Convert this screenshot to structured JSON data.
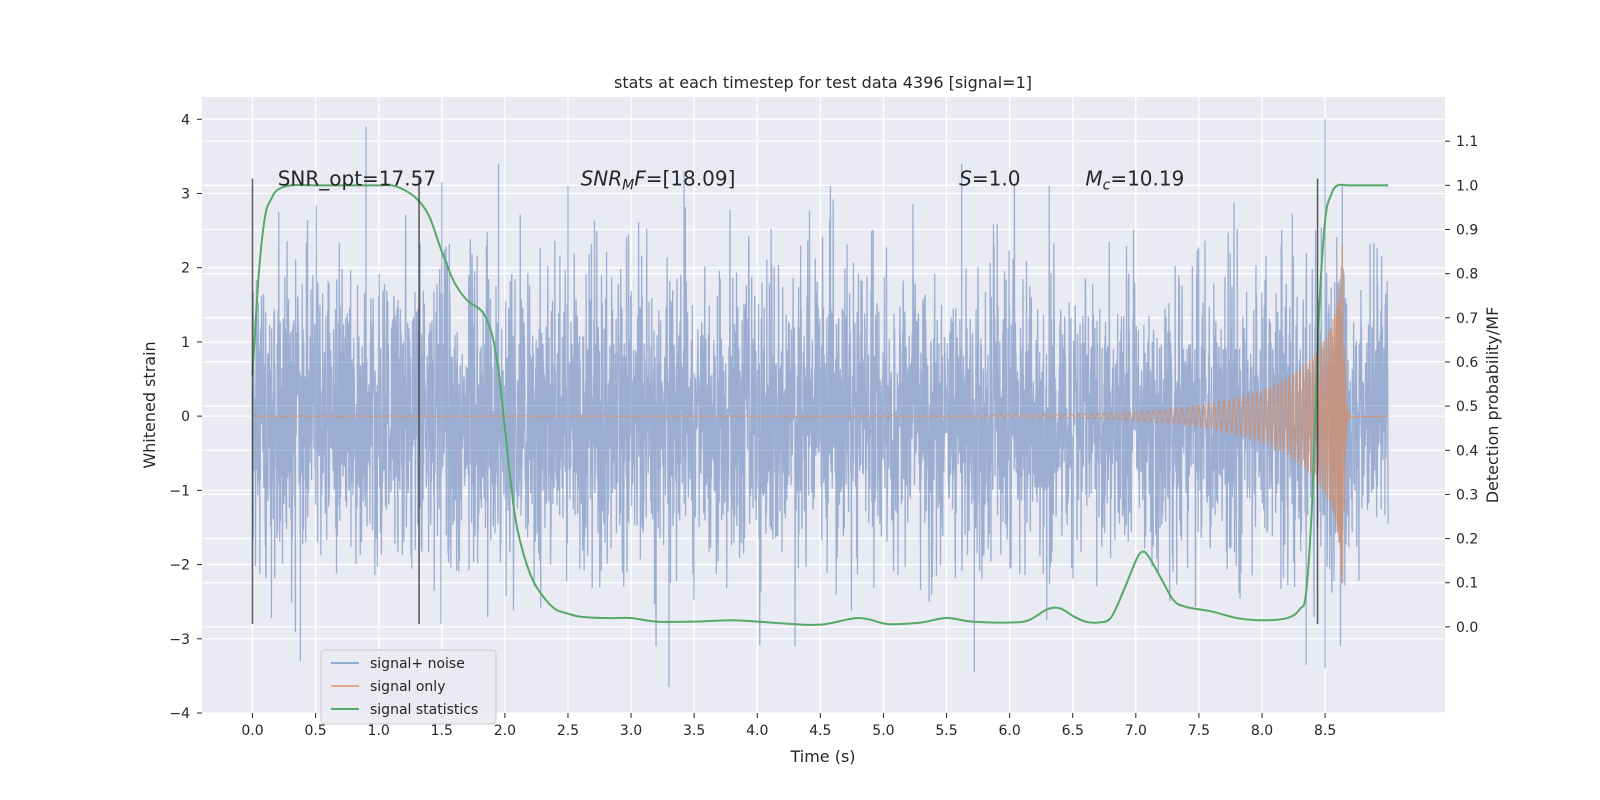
{
  "chart_data": {
    "type": "line",
    "title": "stats at each timestep for test data 4396 [signal=1]",
    "xlabel": "Time (s)",
    "ylabel": "Whitened strain",
    "y2label": "Detection probability/MF",
    "xlim": [
      -0.4,
      9.45
    ],
    "ylim": [
      -4.0,
      4.3
    ],
    "y2lim": [
      -0.195,
      1.2
    ],
    "x_ticks": [
      "0.0",
      "0.5",
      "1.0",
      "1.5",
      "2.0",
      "2.5",
      "3.0",
      "3.5",
      "4.0",
      "4.5",
      "5.0",
      "5.5",
      "6.0",
      "6.5",
      "7.0",
      "7.5",
      "8.0",
      "8.5"
    ],
    "y_ticks": [
      "4",
      "3",
      "2",
      "1",
      "0",
      "−1",
      "−2",
      "−3",
      "−4"
    ],
    "y2_ticks": [
      "1.1",
      "1.0",
      "0.9",
      "0.8",
      "0.7",
      "0.6",
      "0.5",
      "0.4",
      "0.3",
      "0.2",
      "0.1",
      "0.0"
    ],
    "grid": true,
    "legend_position": "bottom-left",
    "annotations": [
      {
        "text": "SNR_opt=17.57",
        "x": 0.2,
        "y": 3.2
      },
      {
        "text": "SNR_MF=[18.09]",
        "x": 2.6,
        "y": 3.2
      },
      {
        "text": "S=1.0",
        "x": 5.6,
        "y": 3.2
      },
      {
        "text": "M_c=10.19",
        "x": 6.6,
        "y": 3.2
      }
    ],
    "vlines": [
      {
        "x": 0.0,
        "ymin": -2.8,
        "ymax": 3.2
      },
      {
        "x": 1.32,
        "ymin": -2.8,
        "ymax": 3.2
      },
      {
        "x": 8.44,
        "ymin": -2.8,
        "ymax": 3.2
      }
    ],
    "series": [
      {
        "name": "signal+ noise",
        "color": "#4c72b0",
        "description": "whitened strain, dense noise band",
        "x_range": [
          0.0,
          9.0
        ],
        "noise_std": 0.95,
        "peaks": [
          {
            "x": 0.9,
            "y": 3.9
          },
          {
            "x": 1.5,
            "y": 3.15
          },
          {
            "x": 1.95,
            "y": 3.4
          },
          {
            "x": 3.42,
            "y": 3.3
          },
          {
            "x": 5.62,
            "y": 3.4
          },
          {
            "x": 8.5,
            "y": 4.0
          },
          {
            "x": 0.38,
            "y": -3.3
          },
          {
            "x": 3.3,
            "y": -3.65
          },
          {
            "x": 5.72,
            "y": -3.45
          },
          {
            "x": 8.35,
            "y": -3.35
          },
          {
            "x": 8.5,
            "y": -3.4
          }
        ]
      },
      {
        "name": "signal only",
        "color": "#dd8452",
        "description": "chirp signal growing toward merger",
        "x_range": [
          0.0,
          8.7
        ],
        "merger_time": 8.65,
        "peak_amplitude": 2.7
      },
      {
        "name": "signal statistics",
        "color": "#55a868",
        "axis": "right",
        "x": [
          0.0,
          0.05,
          0.1,
          0.15,
          0.2,
          0.3,
          0.5,
          0.8,
          1.0,
          1.1,
          1.2,
          1.3,
          1.4,
          1.5,
          1.6,
          1.7,
          1.8,
          1.85,
          1.9,
          1.95,
          2.0,
          2.05,
          2.1,
          2.2,
          2.3,
          2.4,
          2.5,
          2.6,
          2.8,
          3.0,
          3.2,
          3.5,
          3.8,
          4.0,
          4.2,
          4.5,
          4.8,
          5.0,
          5.1,
          5.3,
          5.5,
          5.7,
          6.0,
          6.15,
          6.3,
          6.4,
          6.5,
          6.6,
          6.7,
          6.8,
          6.9,
          7.0,
          7.05,
          7.1,
          7.2,
          7.3,
          7.4,
          7.6,
          7.8,
          8.0,
          8.2,
          8.3,
          8.35,
          8.4,
          8.45,
          8.5,
          8.55,
          8.6,
          8.7,
          9.0
        ],
        "y": [
          0.57,
          0.8,
          0.93,
          0.97,
          0.99,
          1.0,
          1.0,
          1.0,
          1.0,
          1.0,
          0.99,
          0.97,
          0.93,
          0.85,
          0.78,
          0.74,
          0.72,
          0.7,
          0.66,
          0.58,
          0.45,
          0.32,
          0.22,
          0.12,
          0.07,
          0.04,
          0.03,
          0.023,
          0.02,
          0.02,
          0.012,
          0.012,
          0.015,
          0.012,
          0.008,
          0.005,
          0.02,
          0.008,
          0.006,
          0.01,
          0.02,
          0.012,
          0.01,
          0.015,
          0.04,
          0.042,
          0.025,
          0.012,
          0.01,
          0.02,
          0.08,
          0.15,
          0.17,
          0.16,
          0.11,
          0.06,
          0.045,
          0.035,
          0.02,
          0.015,
          0.02,
          0.04,
          0.08,
          0.3,
          0.7,
          0.92,
          0.98,
          1.0,
          1.0,
          1.0
        ]
      }
    ]
  }
}
